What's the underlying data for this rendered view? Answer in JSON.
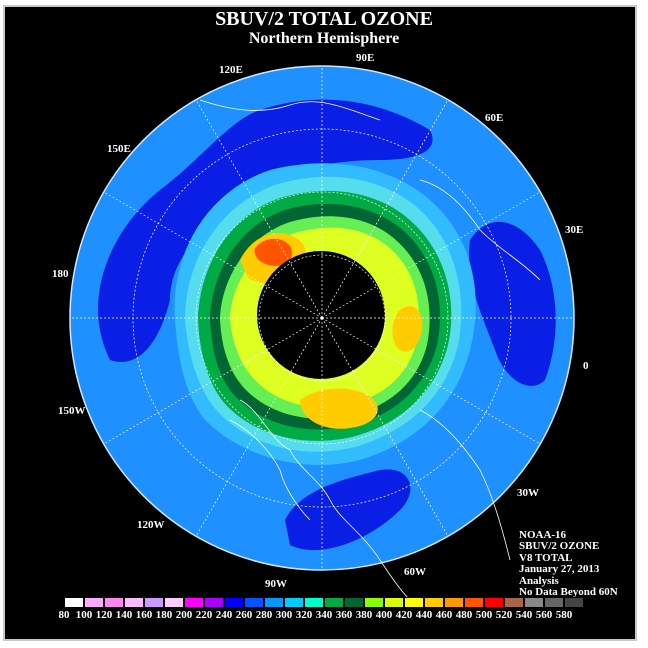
{
  "title": "SBUV/2 TOTAL OZONE",
  "subtitle": "Northern Hemisphere",
  "map_type": "polar stereographic ozone map",
  "longitude_labels": [
    "90E",
    "60E",
    "30E",
    "0",
    "30W",
    "60W",
    "90W",
    "120W",
    "150W",
    "180",
    "150E",
    "120E"
  ],
  "info": {
    "satellite": "NOAA-16",
    "product": "SBUV/2 OZONE",
    "version": "V8 TOTAL",
    "date": "January 27, 2013",
    "kind": "Analysis",
    "note": "No Data Beyond 60N"
  },
  "colorbar": {
    "labels": [
      "80",
      "100",
      "120",
      "140",
      "160",
      "180",
      "200",
      "220",
      "240",
      "260",
      "280",
      "300",
      "320",
      "340",
      "360",
      "380",
      "400",
      "420",
      "440",
      "460",
      "480",
      "500",
      "520",
      "540",
      "560",
      "580"
    ],
    "colors": [
      "#ffffff",
      "#ffaaff",
      "#ff88ee",
      "#ffbbff",
      "#cc99ff",
      "#ffccff",
      "#ff00ff",
      "#aa00ff",
      "#0000ff",
      "#0055ff",
      "#0099ff",
      "#00ccff",
      "#00ffcc",
      "#00aa44",
      "#006633",
      "#88ff00",
      "#ddff00",
      "#ffff00",
      "#ffcc00",
      "#ff9900",
      "#ff5500",
      "#ff0000",
      "#aa6644",
      "#888888",
      "#666666",
      "#444444"
    ]
  },
  "colors": {
    "background": "#000000",
    "ocean_level": "#0099ff",
    "no_data": "#000000",
    "outer_blue": "#2a8cff"
  }
}
